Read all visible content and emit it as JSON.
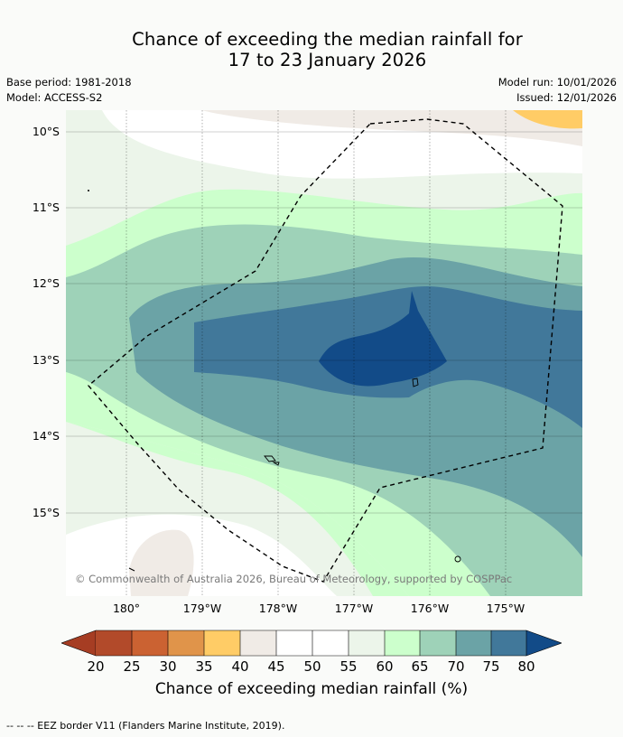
{
  "title_line1": "Chance of exceeding the median rainfall for",
  "title_line2": "17 to 23 January 2026",
  "meta": {
    "base_period": "Base period: 1981-2018",
    "model": "Model: ACCESS-S2",
    "model_run": "Model run: 10/01/2026",
    "issued": "Issued: 12/01/2026"
  },
  "lat_labels": [
    "10°S",
    "11°S",
    "12°S",
    "13°S",
    "14°S",
    "15°S"
  ],
  "lon_labels": [
    "180°",
    "179°W",
    "178°W",
    "177°W",
    "176°W",
    "175°W"
  ],
  "copyright": "© Commonwealth of Australia 2026, Bureau of Meteorology, supported by COSPPac",
  "colorbar": {
    "ticks": [
      "20",
      "25",
      "30",
      "35",
      "40",
      "45",
      "50",
      "55",
      "60",
      "65",
      "70",
      "75",
      "80"
    ],
    "label": "Chance of exceeding median rainfall (%)",
    "colors": {
      "lt20": "#a63d23",
      "20-25": "#b24a2a",
      "25-30": "#cb6232",
      "30-35": "#e0944a",
      "35-40": "#ffcc66",
      "40-45": "#f0ebe6",
      "45-50": "#ffffff",
      "50-55": "#ffffff",
      "55-60": "#ecf5ea",
      "60-65": "#ccffcc",
      "65-70": "#9ed2b8",
      "70-75": "#6ba3a6",
      "75-80": "#41789a",
      "gt80": "#124b88"
    }
  },
  "legend_line": "--  --  -- EEZ border V11 (Flanders Marine Institute, 2019)."
}
